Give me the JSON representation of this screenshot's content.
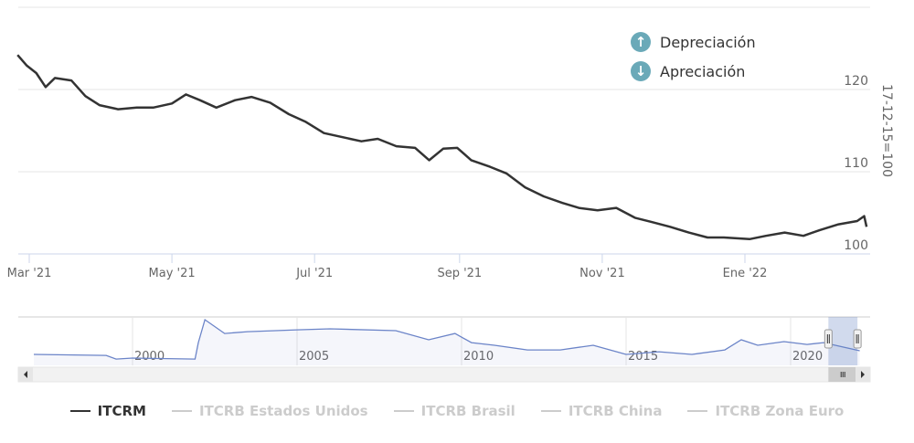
{
  "chart_data": {
    "type": "line",
    "ylabel": "17-12-15=100",
    "ylim": [
      100,
      124.5
    ],
    "yticks": [
      100,
      110,
      120
    ],
    "xlim": [
      "2021-02-24",
      "2022-02-22"
    ],
    "xticks": [
      {
        "date": "2021-03-01",
        "label": "Mar '21"
      },
      {
        "date": "2021-05-01",
        "label": "May '21"
      },
      {
        "date": "2021-07-01",
        "label": "Jul '21"
      },
      {
        "date": "2021-09-01",
        "label": "Sep '21"
      },
      {
        "date": "2021-11-01",
        "label": "Nov '21"
      },
      {
        "date": "2022-01-01",
        "label": "Ene '22"
      }
    ],
    "grid": true,
    "series": [
      {
        "name": "ITCRM",
        "color": "#333333",
        "points": [
          [
            "2021-02-24",
            124.2
          ],
          [
            "2021-02-28",
            122.9
          ],
          [
            "2021-03-04",
            122.0
          ],
          [
            "2021-03-08",
            120.3
          ],
          [
            "2021-03-12",
            121.4
          ],
          [
            "2021-03-19",
            121.1
          ],
          [
            "2021-03-25",
            119.2
          ],
          [
            "2021-03-31",
            118.1
          ],
          [
            "2021-04-08",
            117.6
          ],
          [
            "2021-04-16",
            117.8
          ],
          [
            "2021-04-23",
            117.8
          ],
          [
            "2021-05-01",
            118.3
          ],
          [
            "2021-05-07",
            119.4
          ],
          [
            "2021-05-13",
            118.7
          ],
          [
            "2021-05-20",
            117.8
          ],
          [
            "2021-05-28",
            118.7
          ],
          [
            "2021-06-04",
            119.1
          ],
          [
            "2021-06-12",
            118.4
          ],
          [
            "2021-06-20",
            117.0
          ],
          [
            "2021-06-27",
            116.1
          ],
          [
            "2021-07-05",
            114.7
          ],
          [
            "2021-07-13",
            114.2
          ],
          [
            "2021-07-21",
            113.7
          ],
          [
            "2021-07-28",
            114.0
          ],
          [
            "2021-08-05",
            113.1
          ],
          [
            "2021-08-13",
            112.9
          ],
          [
            "2021-08-19",
            111.4
          ],
          [
            "2021-08-25",
            112.8
          ],
          [
            "2021-08-31",
            112.9
          ],
          [
            "2021-09-06",
            111.4
          ],
          [
            "2021-09-14",
            110.6
          ],
          [
            "2021-09-21",
            109.8
          ],
          [
            "2021-09-29",
            108.1
          ],
          [
            "2021-10-07",
            107.0
          ],
          [
            "2021-10-15",
            106.2
          ],
          [
            "2021-10-22",
            105.6
          ],
          [
            "2021-10-30",
            105.3
          ],
          [
            "2021-11-07",
            105.6
          ],
          [
            "2021-11-15",
            104.4
          ],
          [
            "2021-11-22",
            103.9
          ],
          [
            "2021-11-30",
            103.3
          ],
          [
            "2021-12-08",
            102.6
          ],
          [
            "2021-12-16",
            102.0
          ],
          [
            "2021-12-23",
            102.0
          ],
          [
            "2022-01-03",
            101.8
          ],
          [
            "2022-01-10",
            102.2
          ],
          [
            "2022-01-18",
            102.6
          ],
          [
            "2022-01-26",
            102.2
          ],
          [
            "2022-02-02",
            102.9
          ],
          [
            "2022-02-10",
            103.6
          ],
          [
            "2022-02-18",
            104.0
          ],
          [
            "2022-02-21",
            104.6
          ],
          [
            "2022-02-22",
            103.3
          ]
        ]
      }
    ],
    "annotations": [
      {
        "icon": "arrow-up-circle-icon",
        "label": "Depreciación"
      },
      {
        "icon": "arrow-down-circle-icon",
        "label": "Apreciación"
      }
    ],
    "navigator": {
      "xticks": [
        "2000",
        "2005",
        "2010",
        "2015",
        "2020"
      ],
      "color": "#6b84c8",
      "selected_range": [
        "2021-02-24",
        "2022-02-22"
      ],
      "points": [
        [
          1997.0,
          95
        ],
        [
          1999.2,
          91
        ],
        [
          1999.5,
          77
        ],
        [
          2000.0,
          81
        ],
        [
          2001.9,
          77
        ],
        [
          2002.0,
          140
        ],
        [
          2002.2,
          228
        ],
        [
          2002.8,
          175
        ],
        [
          2003.5,
          182
        ],
        [
          2005.0,
          189
        ],
        [
          2006.0,
          193
        ],
        [
          2008.0,
          186
        ],
        [
          2009.0,
          151
        ],
        [
          2009.8,
          175
        ],
        [
          2010.3,
          140
        ],
        [
          2011.0,
          130
        ],
        [
          2012.0,
          112
        ],
        [
          2013.0,
          112
        ],
        [
          2014.0,
          130
        ],
        [
          2015.0,
          95
        ],
        [
          2016.0,
          105
        ],
        [
          2017.0,
          95
        ],
        [
          2018.0,
          112
        ],
        [
          2018.5,
          151
        ],
        [
          2019.0,
          130
        ],
        [
          2019.8,
          144
        ],
        [
          2020.5,
          133
        ],
        [
          2021.0,
          140
        ],
        [
          2022.1,
          109
        ]
      ]
    },
    "legend": {
      "placement": "bottom",
      "items": [
        {
          "label": "ITCRM",
          "active": true
        },
        {
          "label": "ITCRB Estados Unidos",
          "active": false
        },
        {
          "label": "ITCRB Brasil",
          "active": false
        },
        {
          "label": "ITCRB China",
          "active": false
        },
        {
          "label": "ITCRB Zona Euro",
          "active": false
        }
      ]
    }
  }
}
